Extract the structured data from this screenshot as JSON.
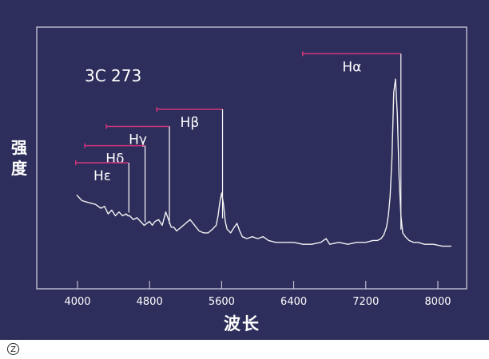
{
  "chart_data": {
    "type": "line",
    "title": "3C 273",
    "xlabel": "波长",
    "ylabel": "强度",
    "xlim": [
      3900,
      8300
    ],
    "ylim": [
      0,
      100
    ],
    "x_ticks": [
      4000,
      4800,
      5600,
      6400,
      7200,
      8000
    ],
    "x_tick_labels": [
      "4000",
      "4800",
      "5600",
      "6400",
      "7200",
      "8000"
    ],
    "y_ticks": [],
    "grid": false,
    "series": [
      {
        "x": [
          3990,
          4050,
          4120,
          4200,
          4260,
          4300,
          4340,
          4380,
          4420,
          4460,
          4500,
          4540,
          4560,
          4580,
          4620,
          4660,
          4700,
          4740,
          4770,
          4800,
          4830,
          4860,
          4900,
          4940,
          4980,
          5010,
          5040,
          5070,
          5100,
          5150,
          5200,
          5250,
          5300,
          5350,
          5400,
          5450,
          5500,
          5540,
          5560,
          5580,
          5600,
          5620,
          5640,
          5660,
          5700,
          5740,
          5770,
          5800,
          5830,
          5880,
          5940,
          6000,
          6060,
          6120,
          6200,
          6300,
          6400,
          6500,
          6600,
          6700,
          6760,
          6800,
          6900,
          7000,
          7100,
          7200,
          7280,
          7330,
          7370,
          7400,
          7430,
          7450,
          7470,
          7490,
          7510,
          7530,
          7550,
          7570,
          7590,
          7610,
          7640,
          7680,
          7730,
          7780,
          7850,
          7950,
          8050,
          8150
        ],
        "y": [
          36,
          33,
          32,
          31,
          29,
          30,
          26,
          28,
          25,
          27,
          25,
          26,
          25,
          25,
          23,
          24,
          22,
          20,
          21,
          22,
          20,
          22,
          23,
          20,
          27,
          23,
          19,
          19,
          17,
          19,
          21,
          23,
          20,
          17,
          16,
          16,
          18,
          20,
          25,
          32,
          37,
          31,
          22,
          18,
          16,
          19,
          21,
          17,
          14,
          13,
          14,
          13,
          14,
          12,
          11,
          11,
          11,
          10,
          10,
          11,
          13,
          10,
          11,
          10,
          11,
          11,
          12,
          12,
          13,
          15,
          19,
          25,
          35,
          55,
          90,
          97,
          78,
          45,
          25,
          16,
          14,
          12,
          11,
          11,
          10,
          10,
          9,
          9
        ]
      }
    ],
    "annotations": [
      {
        "label": "Hα",
        "line_x": 7590,
        "start_x": 6500,
        "y": 98
      },
      {
        "label": "Hβ",
        "line_x": 5610,
        "start_x": 4880,
        "y": 72
      },
      {
        "label": "Hγ",
        "line_x": 5020,
        "start_x": 4320,
        "y": 64
      },
      {
        "label": "Hδ",
        "line_x": 4750,
        "start_x": 4080,
        "y": 55
      },
      {
        "label": "Hε",
        "line_x": 4570,
        "start_x": 3980,
        "y": 47
      }
    ]
  },
  "footer": {
    "badge_text": "Z"
  },
  "colors": {
    "background": "#2e2e5c",
    "foreground": "#ffffff",
    "annotation": "#d0357a",
    "frame": "#d8d8e8"
  }
}
